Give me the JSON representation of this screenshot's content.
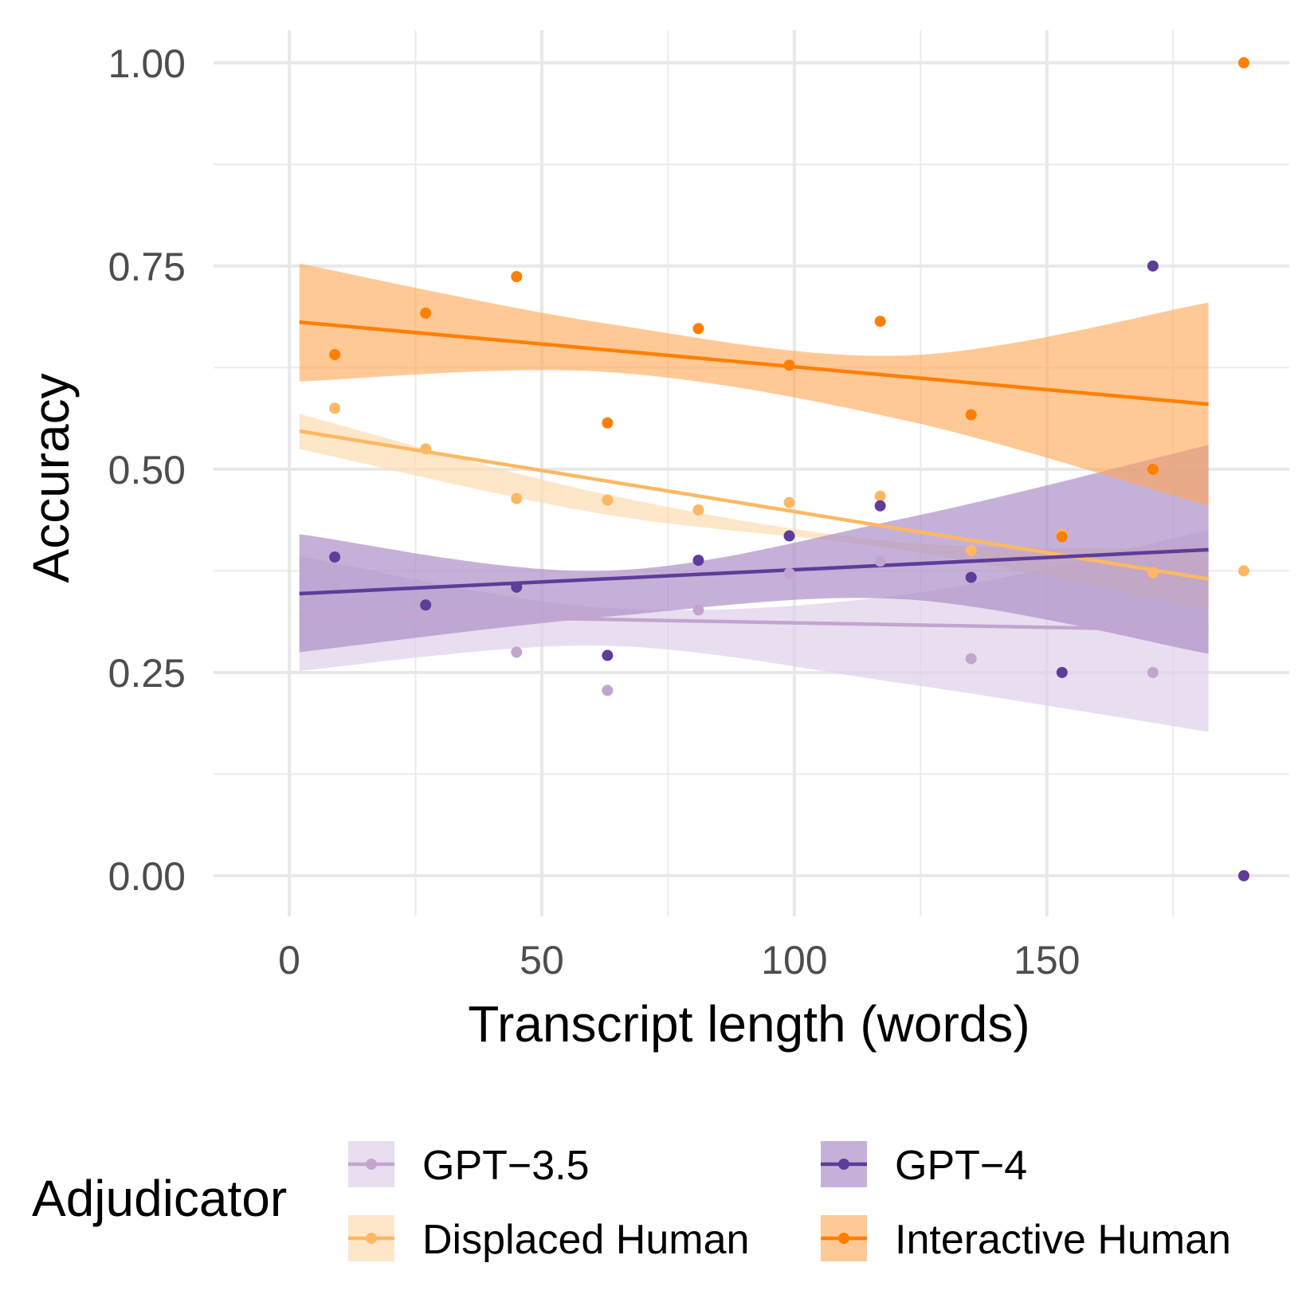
{
  "chart_data": {
    "type": "scatter",
    "title": "",
    "xlabel": "Transcript length (words)",
    "ylabel": "Accuracy",
    "xlim": [
      -15,
      198
    ],
    "ylim": [
      -0.05,
      1.04
    ],
    "x_ticks": [
      0,
      50,
      100,
      150
    ],
    "x_tick_labels": [
      "0",
      "50",
      "100",
      "150"
    ],
    "y_ticks": [
      0,
      0.25,
      0.5,
      0.75,
      1.0
    ],
    "y_tick_labels": [
      "0.00",
      "0.25",
      "0.50",
      "0.75",
      "1.00"
    ],
    "grid": true,
    "legend": {
      "title": "Adjudicator",
      "position": "bottom"
    },
    "fit_range": [
      2,
      182
    ],
    "series": [
      {
        "name": "GPT−3.5",
        "color": "#c2a5cf",
        "band_color": "#e0d0ea",
        "band_opacity": 0.7,
        "x": [
          9,
          27,
          45,
          63,
          81,
          99,
          117,
          135,
          153,
          171
        ],
        "y": [
          0.36,
          0.335,
          0.275,
          0.228,
          0.327,
          0.372,
          0.387,
          0.267,
          0.418,
          0.25
        ],
        "fit": {
          "start": 0.322,
          "end": 0.302
        },
        "band_lower": [
          0.252,
          0.283,
          0.236,
          0.177
        ],
        "band_upper": [
          0.393,
          0.33,
          0.346,
          0.425
        ]
      },
      {
        "name": "Displaced Human",
        "color": "#fdb863",
        "band_color": "#fddcb2",
        "band_opacity": 0.7,
        "x": [
          9,
          27,
          45,
          63,
          81,
          99,
          117,
          135,
          153,
          171,
          189
        ],
        "y": [
          0.575,
          0.525,
          0.464,
          0.462,
          0.45,
          0.459,
          0.467,
          0.4,
          0.42,
          0.373,
          0.375
        ],
        "fit": {
          "start": 0.547,
          "end": 0.365
        },
        "band_lower": [
          0.525,
          0.445,
          0.4,
          0.327
        ],
        "band_upper": [
          0.568,
          0.47,
          0.41,
          0.403
        ]
      },
      {
        "name": "GPT−4",
        "color": "#5e3c99",
        "band_color": "#ac90c8",
        "band_opacity": 0.7,
        "x": [
          9,
          27,
          45,
          63,
          81,
          99,
          117,
          135,
          153,
          171,
          189
        ],
        "y": [
          0.392,
          0.333,
          0.355,
          0.271,
          0.388,
          0.418,
          0.455,
          0.367,
          0.25,
          0.75,
          0.0
        ],
        "fit": {
          "start": 0.347,
          "end": 0.401
        },
        "band_lower": [
          0.275,
          0.318,
          0.34,
          0.273
        ],
        "band_upper": [
          0.42,
          0.375,
          0.44,
          0.53
        ]
      },
      {
        "name": "Interactive Human",
        "color": "#ff7f00",
        "band_color": "#ffa856",
        "band_opacity": 0.62,
        "x": [
          9,
          27,
          45,
          63,
          81,
          99,
          117,
          135,
          153,
          171,
          189
        ],
        "y": [
          0.641,
          0.692,
          0.737,
          0.557,
          0.673,
          0.628,
          0.682,
          0.567,
          0.417,
          0.5,
          1.0
        ],
        "fit": {
          "start": 0.681,
          "end": 0.58
        },
        "band_lower": [
          0.608,
          0.62,
          0.56,
          0.455
        ],
        "band_upper": [
          0.753,
          0.68,
          0.64,
          0.705
        ]
      }
    ]
  }
}
